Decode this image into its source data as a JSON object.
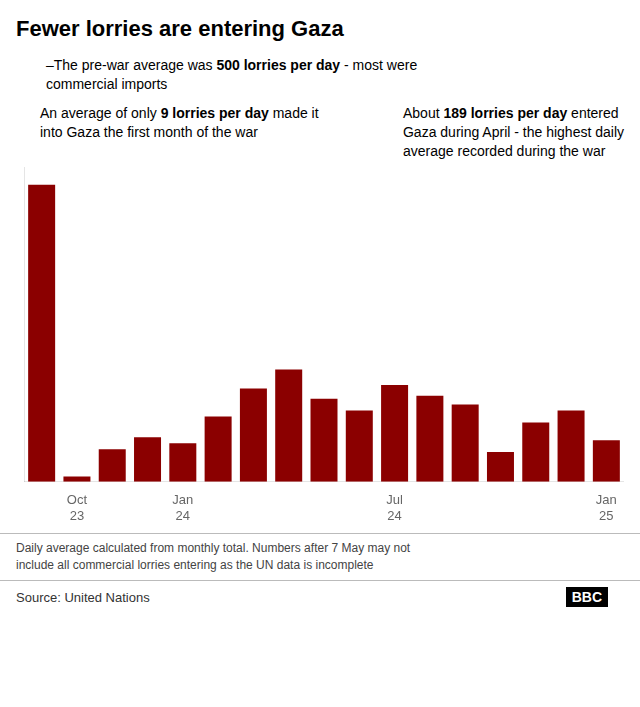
{
  "chart_data": {
    "type": "bar",
    "title": "Fewer lorries are entering Gaza",
    "categories": [
      null,
      "Oct\n23",
      null,
      null,
      "Jan\n24",
      null,
      null,
      null,
      null,
      null,
      "Jul\n24",
      null,
      null,
      null,
      null,
      null,
      "Jan\n25"
    ],
    "values": [
      500,
      9,
      55,
      75,
      65,
      110,
      157,
      189,
      140,
      120,
      163,
      145,
      130,
      50,
      100,
      120,
      70
    ],
    "color": "#8B0000",
    "ylim": [
      0,
      530
    ],
    "yticks": [],
    "tick_labels": "x",
    "grid": false,
    "annotations": [
      {
        "lines": [
          [
            {
              "text": "–The pre-war average was "
            },
            {
              "text": "500 lorries per day",
              "bold": true
            },
            {
              "text": " - most were"
            }
          ],
          [
            {
              "text": "commercial imports"
            }
          ]
        ]
      },
      {
        "lines": [
          [
            {
              "text": "An average of only "
            },
            {
              "text": "9 lorries per day",
              "bold": true
            },
            {
              "text": " made it"
            }
          ],
          [
            {
              "text": "into Gaza the first month of the war"
            }
          ]
        ]
      },
      {
        "lines": [
          [
            {
              "text": "About "
            },
            {
              "text": "189 lorries per day",
              "bold": true
            },
            {
              "text": " entered"
            }
          ],
          [
            {
              "text": "Gaza during April - the highest daily"
            }
          ],
          [
            {
              "text": "average recorded during the war"
            }
          ]
        ]
      }
    ],
    "footnote": [
      "Daily average calculated from monthly total. Numbers after 7 May may not",
      "include all commercial lorries entering as the UN data is incomplete"
    ],
    "source": "Source: United Nations",
    "credit": "BBC"
  }
}
